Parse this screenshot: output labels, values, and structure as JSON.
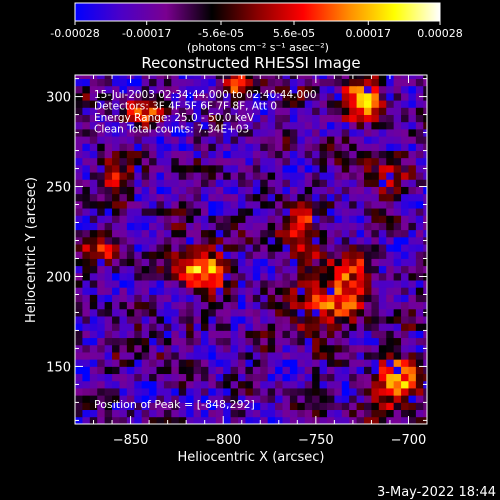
{
  "colorbar": {
    "ticks": [
      {
        "value": -0.00028,
        "label": "-0.00028"
      },
      {
        "value": -0.00017,
        "label": "-0.00017"
      },
      {
        "value": -5.6e-05,
        "label": "-5.6e-05"
      },
      {
        "value": 5.6e-05,
        "label": "5.6e-05"
      },
      {
        "value": 0.00017,
        "label": "0.00017"
      },
      {
        "value": 0.00028,
        "label": "0.00028"
      }
    ],
    "range": [
      -0.00028,
      0.00028
    ],
    "units_label": "(photons cm⁻² s⁻¹ asec⁻²)",
    "palette": [
      "#0000ff",
      "#4b00c8",
      "#7a0090",
      "#000000",
      "#8a0000",
      "#ff0000",
      "#ff8c00",
      "#ffff00",
      "#ffffff"
    ]
  },
  "chart_data": {
    "type": "heatmap",
    "title": "Reconstructed RHESSI Image",
    "xlabel": "Heliocentric X (arcsec)",
    "ylabel": "Heliocentric Y (arcsec)",
    "xlim": [
      -880,
      -690
    ],
    "ylim": [
      118,
      312
    ],
    "xticks": [
      {
        "value": -850,
        "label": "−850"
      },
      {
        "value": -800,
        "label": "−800"
      },
      {
        "value": -750,
        "label": "−750"
      },
      {
        "value": -700,
        "label": "−700"
      }
    ],
    "yticks": [
      {
        "value": 150,
        "label": "150"
      },
      {
        "value": 200,
        "label": "200"
      },
      {
        "value": 250,
        "label": "250"
      },
      {
        "value": 300,
        "label": "300"
      }
    ],
    "annotations": [
      "15-Jul-2003 02:34:44.000 to 02:40:44.000",
      "Detectors: 3F 4F 5F 6F 7F 8F, Att 0",
      "Energy Range: 25.0 - 50.0 keV",
      "Clean      Total counts: 7.34E+03"
    ],
    "peak_label": "Position of Peak = [-848,292]",
    "peak": [
      -848,
      292
    ],
    "grid_step_arcsec": 4,
    "bright_sources": [
      {
        "x": -812,
        "y": 205,
        "amp": 1.0,
        "sigma": 10
      },
      {
        "x": -760,
        "y": 228,
        "amp": 0.8,
        "sigma": 9
      },
      {
        "x": -738,
        "y": 195,
        "amp": 0.9,
        "sigma": 12
      },
      {
        "x": -755,
        "y": 175,
        "amp": 0.6,
        "sigma": 9
      },
      {
        "x": -705,
        "y": 140,
        "amp": 0.95,
        "sigma": 11
      },
      {
        "x": -725,
        "y": 300,
        "amp": 0.85,
        "sigma": 10
      },
      {
        "x": -790,
        "y": 305,
        "amp": 0.6,
        "sigma": 8
      },
      {
        "x": -845,
        "y": 290,
        "amp": 0.7,
        "sigma": 7
      },
      {
        "x": -860,
        "y": 255,
        "amp": 0.6,
        "sigma": 8
      },
      {
        "x": -865,
        "y": 215,
        "amp": 0.5,
        "sigma": 7
      },
      {
        "x": -835,
        "y": 160,
        "amp": 0.45,
        "sigma": 7
      },
      {
        "x": -715,
        "y": 255,
        "amp": 0.6,
        "sigma": 8
      }
    ],
    "noise_amplitude": 0.55,
    "noise_seed": 7
  },
  "footer": {
    "date_stamp": "3-May-2022 18:44"
  }
}
